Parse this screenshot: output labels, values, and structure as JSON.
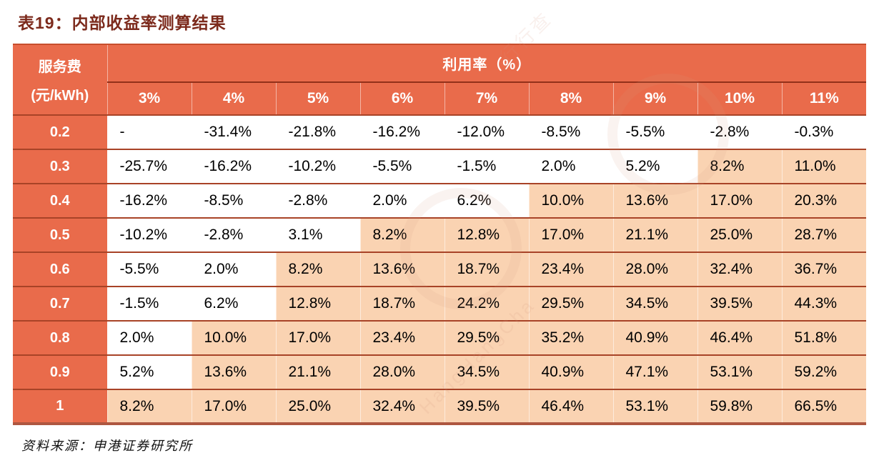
{
  "title": "表19：内部收益率测算结果",
  "source_note": "资料来源：申港证券研究所",
  "watermark": {
    "text1": "行行查",
    "text2": "HangHangCha"
  },
  "colors": {
    "header_bg": "#e96b4b",
    "highlight_bg": "#fad3b2",
    "row_line": "#a84327",
    "top_border": "#c74e2d",
    "bottom_border": "#ae5740",
    "group_line": "#92301a",
    "title_color": "#7c2a1c"
  },
  "chart_data": {
    "type": "table",
    "title": "表19：内部收益率测算结果",
    "corner_header": {
      "line1": "服务费",
      "line2": "(元/kWh)"
    },
    "col_group_header": "利用率（%）",
    "col_headers": [
      "3%",
      "4%",
      "5%",
      "6%",
      "7%",
      "8%",
      "9%",
      "10%",
      "11%"
    ],
    "rows": [
      {
        "label": "0.2",
        "highlight_from": -1,
        "values": [
          "-",
          "-31.4%",
          "-21.8%",
          "-16.2%",
          "-12.0%",
          "-8.5%",
          "-5.5%",
          "-2.8%",
          "-0.3%"
        ]
      },
      {
        "label": "0.3",
        "highlight_from": 7,
        "values": [
          "-25.7%",
          "-16.2%",
          "-10.2%",
          "-5.5%",
          "-1.5%",
          "2.0%",
          "5.2%",
          "8.2%",
          "11.0%"
        ]
      },
      {
        "label": "0.4",
        "highlight_from": 5,
        "values": [
          "-16.2%",
          "-8.5%",
          "-2.8%",
          "2.0%",
          "6.2%",
          "10.0%",
          "13.6%",
          "17.0%",
          "20.3%"
        ]
      },
      {
        "label": "0.5",
        "highlight_from": 3,
        "values": [
          "-10.2%",
          "-2.8%",
          "3.1%",
          "8.2%",
          "12.8%",
          "17.0%",
          "21.1%",
          "25.0%",
          "28.7%"
        ]
      },
      {
        "label": "0.6",
        "highlight_from": 2,
        "values": [
          "-5.5%",
          "2.0%",
          "8.2%",
          "13.6%",
          "18.7%",
          "23.4%",
          "28.0%",
          "32.4%",
          "36.7%"
        ]
      },
      {
        "label": "0.7",
        "highlight_from": 2,
        "values": [
          "-1.5%",
          "6.2%",
          "12.8%",
          "18.7%",
          "24.2%",
          "29.5%",
          "34.5%",
          "39.5%",
          "44.3%"
        ]
      },
      {
        "label": "0.8",
        "highlight_from": 1,
        "values": [
          "2.0%",
          "10.0%",
          "17.0%",
          "23.4%",
          "29.5%",
          "35.2%",
          "40.9%",
          "46.4%",
          "51.8%"
        ]
      },
      {
        "label": "0.9",
        "highlight_from": 1,
        "values": [
          "5.2%",
          "13.6%",
          "21.1%",
          "28.0%",
          "34.5%",
          "40.9%",
          "47.1%",
          "53.1%",
          "59.2%"
        ]
      },
      {
        "label": "1",
        "highlight_from": 0,
        "values": [
          "8.2%",
          "17.0%",
          "25.0%",
          "32.4%",
          "39.5%",
          "46.4%",
          "53.1%",
          "59.8%",
          "66.5%"
        ]
      }
    ]
  }
}
